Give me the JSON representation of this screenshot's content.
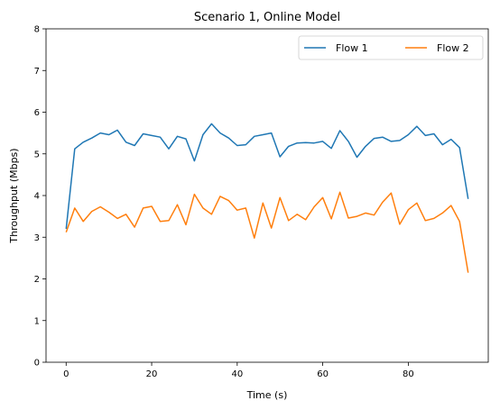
{
  "chart_data": {
    "type": "line",
    "title": "Scenario 1, Online Model",
    "xlabel": "Time (s)",
    "ylabel": "Throughput (Mbps)",
    "xlim": [
      -4.7,
      98.7
    ],
    "ylim": [
      0,
      8
    ],
    "xticks": [
      0,
      20,
      40,
      60,
      80
    ],
    "yticks": [
      0,
      1,
      2,
      3,
      4,
      5,
      6,
      7,
      8
    ],
    "grid": false,
    "legend": "top-right",
    "x": [
      0,
      2,
      4,
      6,
      8,
      10,
      12,
      14,
      16,
      18,
      20,
      22,
      24,
      26,
      28,
      30,
      32,
      34,
      36,
      38,
      40,
      42,
      44,
      46,
      48,
      50,
      52,
      54,
      56,
      58,
      60,
      62,
      64,
      66,
      68,
      70,
      72,
      74,
      76,
      78,
      80,
      82,
      84,
      86,
      88,
      90,
      92,
      94
    ],
    "series": [
      {
        "name": "Flow 1",
        "color": "#1f77b4",
        "values": [
          3.2,
          5.12,
          5.28,
          5.38,
          5.5,
          5.46,
          5.57,
          5.28,
          5.2,
          5.48,
          5.44,
          5.4,
          5.12,
          5.42,
          5.36,
          4.83,
          5.46,
          5.72,
          5.5,
          5.38,
          5.2,
          5.22,
          5.42,
          5.46,
          5.5,
          4.93,
          5.18,
          5.26,
          5.27,
          5.26,
          5.3,
          5.13,
          5.56,
          5.3,
          4.92,
          5.18,
          5.37,
          5.4,
          5.3,
          5.32,
          5.46,
          5.66,
          5.44,
          5.48,
          5.22,
          5.35,
          5.15,
          3.92
        ]
      },
      {
        "name": "Flow 2",
        "color": "#ff7f0e",
        "values": [
          3.12,
          3.7,
          3.38,
          3.62,
          3.73,
          3.6,
          3.45,
          3.55,
          3.24,
          3.7,
          3.74,
          3.38,
          3.4,
          3.78,
          3.3,
          4.03,
          3.7,
          3.55,
          3.98,
          3.88,
          3.65,
          3.7,
          2.98,
          3.82,
          3.22,
          3.95,
          3.4,
          3.55,
          3.42,
          3.73,
          3.95,
          3.44,
          4.08,
          3.46,
          3.5,
          3.58,
          3.53,
          3.84,
          4.06,
          3.31,
          3.66,
          3.82,
          3.4,
          3.45,
          3.58,
          3.76,
          3.38,
          2.15
        ]
      }
    ]
  }
}
